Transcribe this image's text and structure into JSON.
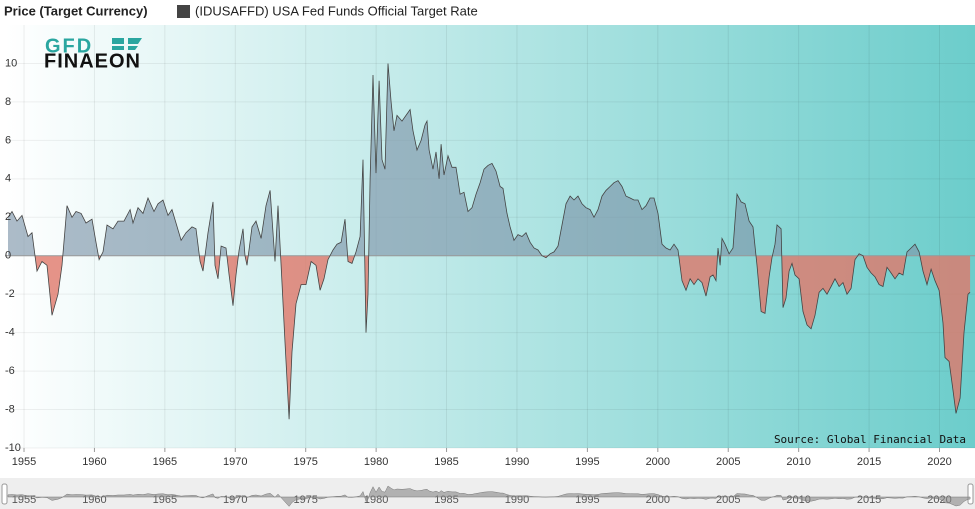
{
  "chart_data": {
    "type": "area",
    "title": "Price (Target Currency)",
    "source": "Source: Global Financial Data",
    "logo": [
      "GFD",
      "FINAEON"
    ],
    "series": [
      {
        "name": "(IDUSAFFD) USA Fed Funds Official Target Rate",
        "color": "#444444",
        "values": [
          2.0,
          2.3,
          1.8,
          2.1,
          1.0,
          1.2,
          -0.8,
          -0.3,
          -0.5,
          -3.1,
          -2.0,
          -0.5,
          2.6,
          2.0,
          2.3,
          2.2,
          1.7,
          1.9,
          0.7,
          -0.2,
          0.2,
          1.6,
          1.4,
          1.8,
          1.8,
          2.4,
          1.7,
          2.5,
          2.2,
          3.0,
          2.3,
          2.7,
          2.9,
          2.1,
          2.4,
          1.7,
          0.8,
          1.2,
          1.5,
          1.4,
          -0.3,
          -0.8,
          1.2,
          2.8,
          -0.5,
          -1.2,
          0.5,
          0.4,
          -1.0,
          -2.6,
          -1.0,
          0.3,
          1.4,
          0.0,
          -0.5,
          1.5,
          1.8,
          0.9,
          2.6,
          3.4,
          -0.3,
          2.6,
          -0.5,
          -4.5,
          -8.5,
          -5.0,
          -2.5,
          -1.5,
          -1.5,
          -0.3,
          -0.5,
          -1.8,
          -1.2,
          -0.2,
          0.3,
          0.6,
          0.7,
          1.9,
          -0.3,
          -0.4,
          0.2,
          1.0,
          5.0,
          -4.0,
          -2.0,
          4.0,
          9.4,
          4.3,
          9.1,
          5.0,
          4.5,
          10.0,
          8.0,
          6.5,
          7.3,
          7.0,
          7.3,
          7.6,
          6.5,
          5.5,
          6.0,
          6.8,
          7.0,
          5.5,
          4.5,
          5.4,
          4.0,
          5.8,
          4.2,
          5.2,
          4.6,
          4.6,
          3.2,
          3.3,
          2.3,
          2.5,
          3.2,
          3.8,
          4.5,
          4.7,
          4.8,
          4.4,
          3.6,
          3.5,
          2.2,
          1.5,
          0.8,
          1.1,
          1.0,
          1.2,
          0.7,
          0.4,
          0.3,
          0.0,
          -0.1,
          0.1,
          0.2,
          0.5,
          1.6,
          2.7,
          3.1,
          2.9,
          3.1,
          2.7,
          2.5,
          2.4,
          2.0,
          2.4,
          3.1,
          3.4,
          3.6,
          3.8,
          3.9,
          3.6,
          3.1,
          3.0,
          2.9,
          2.9,
          2.4,
          2.6,
          3.0,
          3.0,
          2.2,
          0.6,
          0.4,
          0.3,
          0.6,
          0.3,
          -1.3,
          -1.8,
          -1.2,
          -1.5,
          -1.2,
          -1.4,
          -2.1,
          -1.1,
          -1.0,
          -1.3,
          0.4,
          -0.5,
          0.9,
          0.6,
          0.1,
          0.4,
          3.2,
          2.8,
          2.7,
          1.8,
          1.5,
          -0.5,
          -2.9,
          -3.0,
          -1.1,
          -0.1,
          0.6,
          1.6,
          1.4,
          -2.7,
          -2.2,
          -0.8,
          -0.4,
          -1.0,
          -1.2,
          -2.9,
          -3.6,
          -3.8,
          -3.1,
          -1.9,
          -1.7,
          -2.0,
          -1.6,
          -1.2,
          -1.6,
          -1.4,
          -2.0,
          -1.7,
          -0.2,
          0.1,
          0.0,
          -0.6,
          -0.9,
          -1.1,
          -1.5,
          -1.6,
          -0.6,
          -0.9,
          -1.2,
          -0.9,
          -1.0,
          0.2,
          0.4,
          0.6,
          0.2,
          -0.8,
          -1.5,
          -0.7,
          -1.3,
          -1.8,
          -3.5,
          -5.3,
          -5.5,
          -7.0,
          -8.2,
          -7.4,
          -4.0,
          -2.0,
          -1.9
        ]
      }
    ],
    "x": [
      1953.86,
      1954.15,
      1954.5,
      1954.86,
      1955.28,
      1955.57,
      1955.92,
      1956.28,
      1956.63,
      1956.99,
      1957.41,
      1957.7,
      1958.05,
      1958.41,
      1958.69,
      1959.05,
      1959.4,
      1959.83,
      1960.11,
      1960.33,
      1960.61,
      1960.89,
      1961.32,
      1961.67,
      1962.1,
      1962.53,
      1962.74,
      1963.09,
      1963.45,
      1963.8,
      1964.23,
      1964.51,
      1964.87,
      1965.22,
      1965.51,
      1965.79,
      1966.15,
      1966.5,
      1966.93,
      1967.21,
      1967.5,
      1967.71,
      1968.06,
      1968.42,
      1968.56,
      1968.77,
      1968.99,
      1969.34,
      1969.56,
      1969.84,
      1970.05,
      1970.27,
      1970.55,
      1970.69,
      1970.83,
      1971.19,
      1971.47,
      1971.83,
      1972.18,
      1972.47,
      1972.82,
      1973.03,
      1973.25,
      1973.53,
      1973.82,
      1974.03,
      1974.31,
      1974.67,
      1975.02,
      1975.38,
      1975.73,
      1976.02,
      1976.3,
      1976.58,
      1976.94,
      1977.22,
      1977.51,
      1977.79,
      1978.0,
      1978.29,
      1978.57,
      1978.86,
      1979.07,
      1979.28,
      1979.42,
      1979.57,
      1979.78,
      1979.99,
      1980.21,
      1980.42,
      1980.63,
      1980.84,
      1981.06,
      1981.27,
      1981.48,
      1981.84,
      1982.12,
      1982.41,
      1982.62,
      1982.9,
      1983.19,
      1983.47,
      1983.61,
      1983.76,
      1984.04,
      1984.25,
      1984.47,
      1984.61,
      1984.82,
      1985.1,
      1985.39,
      1985.67,
      1985.96,
      1986.24,
      1986.52,
      1986.81,
      1987.09,
      1987.38,
      1987.66,
      1987.94,
      1988.23,
      1988.51,
      1988.8,
      1989.01,
      1989.29,
      1989.51,
      1989.79,
      1990.07,
      1990.36,
      1990.64,
      1990.93,
      1991.21,
      1991.49,
      1991.78,
      1992.06,
      1992.35,
      1992.63,
      1992.91,
      1993.2,
      1993.48,
      1993.77,
      1994.05,
      1994.33,
      1994.62,
      1994.9,
      1995.19,
      1995.47,
      1995.75,
      1996.04,
      1996.32,
      1996.61,
      1996.89,
      1997.17,
      1997.46,
      1997.74,
      1998.03,
      1998.31,
      1998.59,
      1998.88,
      1999.16,
      1999.45,
      1999.73,
      2000.01,
      2000.3,
      2000.58,
      2000.87,
      2001.15,
      2001.43,
      2001.72,
      2002.0,
      2002.29,
      2002.57,
      2002.85,
      2003.14,
      2003.42,
      2003.71,
      2003.92,
      2004.13,
      2004.27,
      2004.42,
      2004.56,
      2004.77,
      2005.06,
      2005.34,
      2005.62,
      2005.91,
      2006.19,
      2006.48,
      2006.76,
      2007.04,
      2007.33,
      2007.61,
      2007.9,
      2008.11,
      2008.32,
      2008.46,
      2008.75,
      2008.89,
      2009.1,
      2009.32,
      2009.53,
      2009.74,
      2010.03,
      2010.31,
      2010.59,
      2010.88,
      2011.16,
      2011.45,
      2011.73,
      2012.01,
      2012.3,
      2012.58,
      2012.87,
      2013.15,
      2013.43,
      2013.72,
      2014.0,
      2014.29,
      2014.57,
      2014.85,
      2015.14,
      2015.42,
      2015.71,
      2015.99,
      2016.27,
      2016.56,
      2016.84,
      2017.13,
      2017.41,
      2017.69,
      2017.98,
      2018.26,
      2018.55,
      2018.83,
      2019.11,
      2019.4,
      2019.68,
      2019.97,
      2020.25,
      2020.39,
      2020.68,
      2020.96,
      2021.17,
      2021.46,
      2021.74,
      2022.02,
      2022.17
    ],
    "xlim": [
      1953.65,
      2022.52
    ],
    "xticks": [
      1955,
      1960,
      1965,
      1970,
      1975,
      1980,
      1985,
      1990,
      1995,
      2000,
      2005,
      2010,
      2015,
      2020
    ],
    "ylim": [
      -10,
      12
    ],
    "yticks": [
      -10,
      -8,
      -6,
      -4,
      -2,
      0,
      2,
      4,
      6,
      8,
      10
    ],
    "grid": true,
    "positive_color": "#7f97ab",
    "negative_color": "#e0786a"
  }
}
